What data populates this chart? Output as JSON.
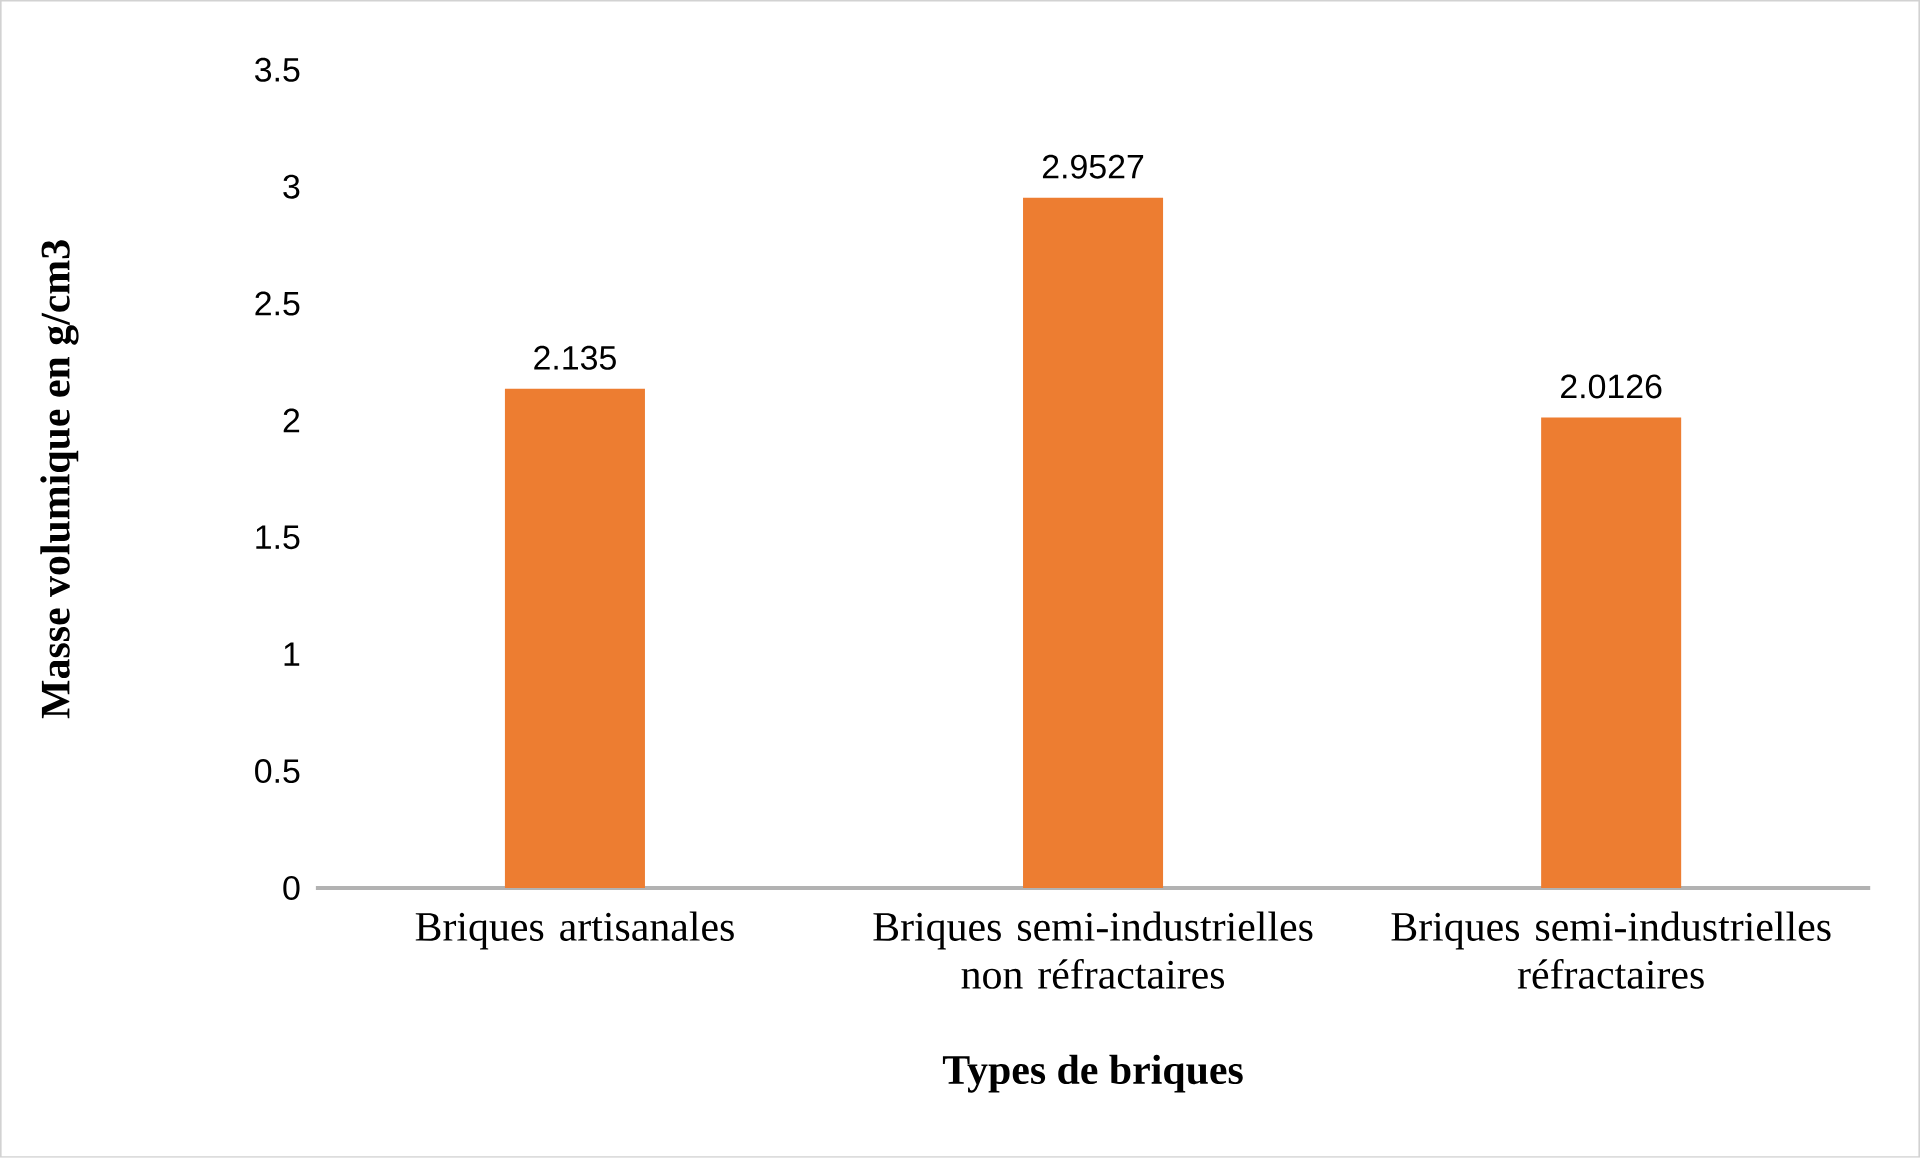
{
  "chart_data": {
    "type": "bar",
    "xlabel": "Types de briques",
    "ylabel": "Masse volumique en g/cm3",
    "categories": [
      "Briques artisanales",
      "Briques semi-industrielles non réfractaires",
      "Briques semi-industrielles réfractaires"
    ],
    "values": [
      2.135,
      2.9527,
      2.0126
    ],
    "color": "#ed7d31",
    "ylim": [
      0,
      3.5
    ],
    "yticks": [
      0,
      0.5,
      1,
      1.5,
      2,
      2.5,
      3,
      3.5
    ],
    "data_labels": true,
    "grid": false
  }
}
